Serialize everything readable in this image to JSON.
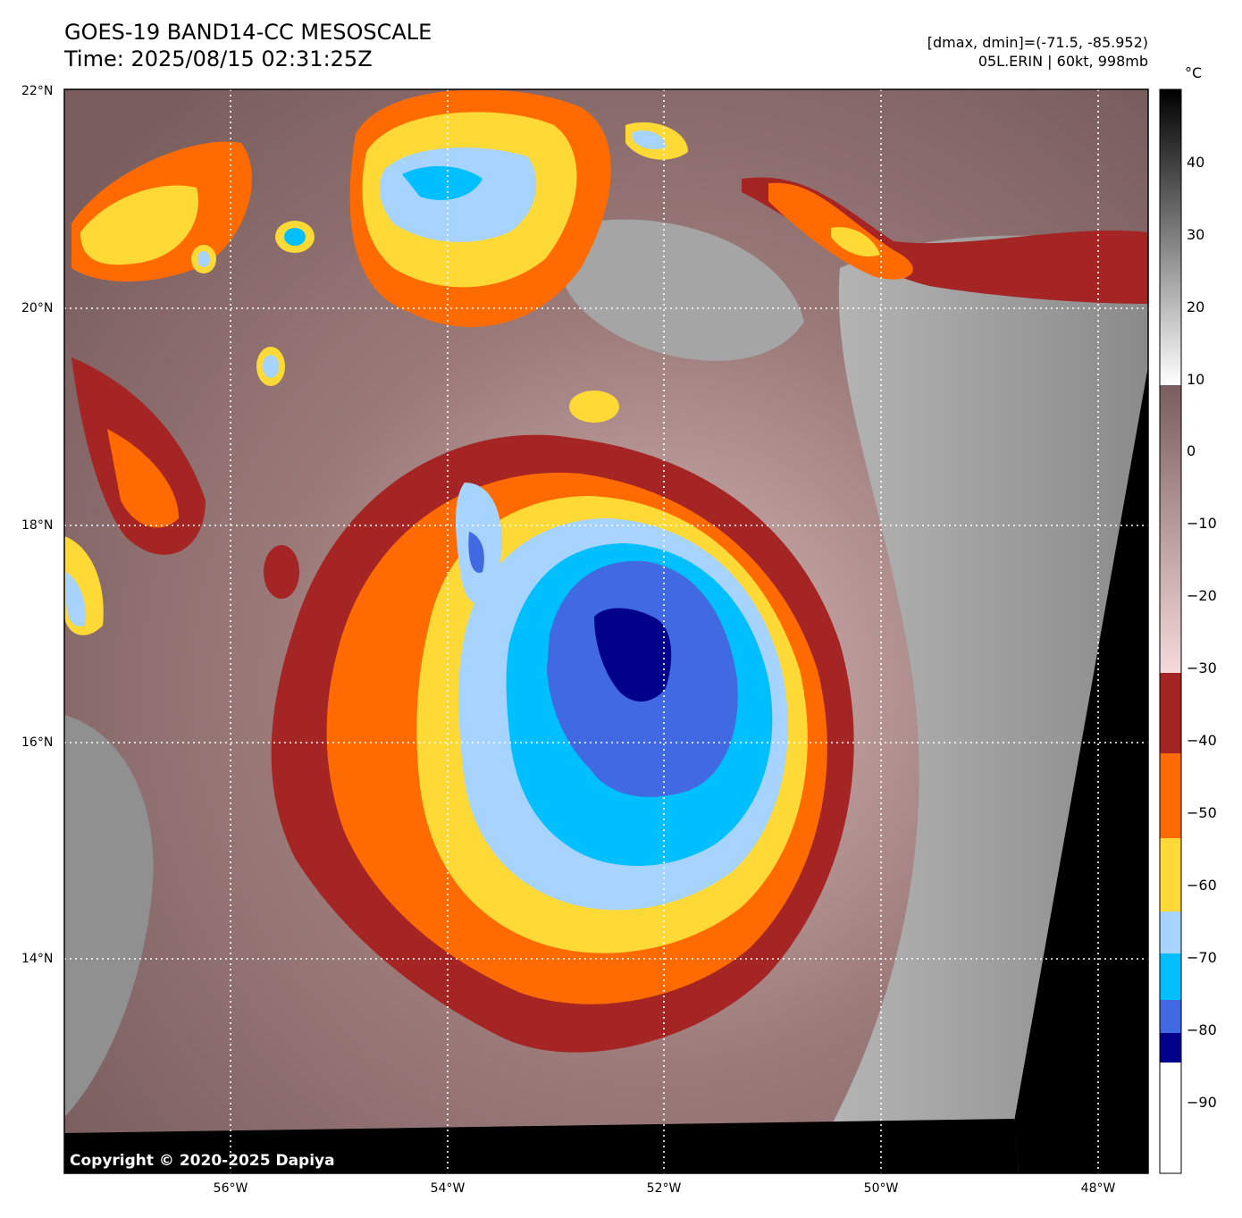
{
  "header": {
    "title": "GOES-19 BAND14-CC MESOSCALE",
    "time": "Time: 2025/08/15 02:31:25Z",
    "range": "[dmax, dmin]=(-71.5, -85.952)",
    "storm": "05L.ERIN | 60kt, 998mb"
  },
  "copyright": "Copyright © 2020-2025 Dapiya",
  "lat_labels": [
    "22°N",
    "20°N",
    "18°N",
    "16°N",
    "14°N"
  ],
  "lon_labels": [
    "56°W",
    "54°W",
    "52°W",
    "50°W",
    "48°W"
  ],
  "colorbar": {
    "unit": "°C",
    "ticks": [
      "40",
      "30",
      "20",
      "10",
      "0",
      "−10",
      "−20",
      "−30",
      "−40",
      "−50",
      "−60",
      "−70",
      "−80",
      "−90"
    ],
    "bands": [
      {
        "name": "dark-blue",
        "color": "#00008b"
      },
      {
        "name": "royal-blue",
        "color": "#4169e1"
      },
      {
        "name": "deep-sky-blue",
        "color": "#00bfff"
      },
      {
        "name": "light-sky-blue",
        "color": "#a7d3ff"
      },
      {
        "name": "gold",
        "color": "#ffd935"
      },
      {
        "name": "orange",
        "color": "#ff6b00"
      },
      {
        "name": "brown-red",
        "color": "#a52424"
      },
      {
        "name": "pink-grey",
        "color": "#d9b5b5"
      },
      {
        "name": "grey",
        "color": "#808080"
      },
      {
        "name": "black",
        "color": "#000000"
      }
    ]
  }
}
